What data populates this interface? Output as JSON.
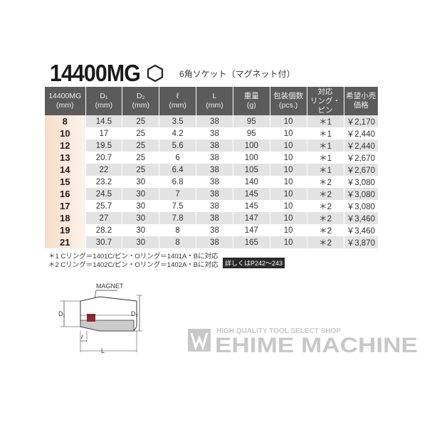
{
  "title": "14400MG",
  "subtitle": "6角ソケット（マグネット付）",
  "hex_icon": "hexagon-icon",
  "table": {
    "headers": [
      [
        "14400MG",
        "(mm)"
      ],
      [
        "D₁",
        "(mm)"
      ],
      [
        "D₂",
        "(mm)"
      ],
      [
        "ℓ",
        "(mm)"
      ],
      [
        "L",
        "(mm)"
      ],
      [
        "重量",
        "(g)"
      ],
      [
        "包装個数",
        "(pcs.)"
      ],
      [
        "対応",
        "リング・ピン"
      ],
      [
        "希望小売",
        "価格"
      ]
    ],
    "rows": [
      [
        "8",
        "14.5",
        "25",
        "3.5",
        "38",
        "95",
        "10",
        "＊1",
        "￥2,170"
      ],
      [
        "10",
        "17",
        "25",
        "4.2",
        "38",
        "95",
        "10",
        "＊1",
        "￥2,440"
      ],
      [
        "12",
        "19.5",
        "25",
        "5.6",
        "38",
        "100",
        "10",
        "＊1",
        "￥2,440"
      ],
      [
        "13",
        "20.7",
        "25",
        "6",
        "38",
        "100",
        "10",
        "＊1",
        "￥2,670"
      ],
      [
        "14",
        "22",
        "25",
        "6.4",
        "38",
        "105",
        "10",
        "＊1",
        "￥2,670"
      ],
      [
        "15",
        "23.2",
        "30",
        "6.8",
        "38",
        "140",
        "10",
        "＊2",
        "￥3,080"
      ],
      [
        "16",
        "24.5",
        "30",
        "7",
        "38",
        "145",
        "10",
        "＊2",
        "￥3,080"
      ],
      [
        "17",
        "25.7",
        "30",
        "7.5",
        "38",
        "145",
        "10",
        "＊2",
        "￥3,080"
      ],
      [
        "18",
        "27",
        "30",
        "7.8",
        "38",
        "147",
        "10",
        "＊2",
        "￥3,460"
      ],
      [
        "19",
        "28.2",
        "30",
        "8",
        "38",
        "147",
        "10",
        "＊2",
        "￥3,460"
      ],
      [
        "21",
        "30.7",
        "30",
        "8",
        "38",
        "165",
        "10",
        "＊2",
        "￥3,870"
      ]
    ]
  },
  "notes": [
    "＊1 Cリング＝1401C/ピン・Oリング＝1401A・Bに対応",
    "＊2 Cリング＝1402C/ピン・Oリング＝1402A・Bに対応"
  ],
  "reference_badge": "詳しくはP242～243",
  "diagram": {
    "magnet": "MAGNET",
    "d1": "D₁",
    "d2": "D₂",
    "l_small": "ℓ",
    "l_large": "L",
    "magnet_color": "#8b2a2a"
  },
  "logo": {
    "tagline": "HIGH QUALITY TOOL SELECT SHOP",
    "name": "EHIME MACHINE",
    "color": "#c8c8c8"
  }
}
